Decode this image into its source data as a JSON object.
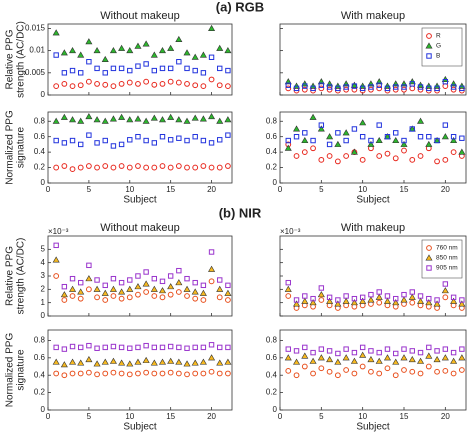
{
  "panel_titles": [
    "(a) RGB",
    "(b) NIR"
  ],
  "chart_data": [
    {
      "type": "scatter",
      "title": "Without makeup",
      "ylabel": [
        "Relative PPG",
        "strength (AC/DC)"
      ],
      "x": [
        1,
        2,
        3,
        4,
        5,
        6,
        7,
        8,
        9,
        10,
        11,
        12,
        13,
        14,
        15,
        16,
        17,
        18,
        19,
        20,
        21,
        22
      ],
      "xlim": [
        0,
        22.5
      ],
      "xticks": [
        0,
        5,
        10,
        15,
        20
      ],
      "xtick_labels": false,
      "ylim": [
        0,
        0.016
      ],
      "yticks": [
        0,
        0.005,
        0.01,
        0.015
      ],
      "series": [
        {
          "name": "R",
          "color": "#e8281e",
          "marker": "circle",
          "values": [
            0.002,
            0.0025,
            0.002,
            0.0022,
            0.003,
            0.0025,
            0.0023,
            0.002,
            0.0025,
            0.0028,
            0.0025,
            0.003,
            0.0023,
            0.0025,
            0.003,
            0.0028,
            0.0025,
            0.0022,
            0.002,
            0.0035,
            0.0022,
            0.002
          ]
        },
        {
          "name": "G",
          "color": "#2db52d",
          "marker": "triangle",
          "values": [
            0.014,
            0.0095,
            0.01,
            0.009,
            0.012,
            0.01,
            0.008,
            0.01,
            0.0105,
            0.01,
            0.011,
            0.0115,
            0.009,
            0.01,
            0.0105,
            0.0125,
            0.0095,
            0.0085,
            0.009,
            0.015,
            0.0105,
            0.01
          ]
        },
        {
          "name": "B",
          "color": "#2233dd",
          "marker": "square",
          "values": [
            0.009,
            0.005,
            0.0055,
            0.005,
            0.0075,
            0.006,
            0.005,
            0.006,
            0.006,
            0.0055,
            0.0065,
            0.007,
            0.0055,
            0.006,
            0.006,
            0.0075,
            0.006,
            0.0055,
            0.005,
            0.0085,
            0.006,
            0.0055
          ]
        }
      ]
    },
    {
      "type": "scatter",
      "title": "With makeup",
      "legend": "upper right",
      "x": [
        1,
        2,
        3,
        4,
        5,
        6,
        7,
        8,
        9,
        10,
        11,
        12,
        13,
        14,
        15,
        16,
        17,
        18,
        19,
        20,
        21,
        22
      ],
      "xlim": [
        0,
        22.5
      ],
      "xticks": [
        0,
        5,
        10,
        15,
        20
      ],
      "xtick_labels": false,
      "ylim": [
        0,
        0.016
      ],
      "yticks": [
        0,
        0.005,
        0.01,
        0.015
      ],
      "ytick_labels": false,
      "series": [
        {
          "name": "R",
          "color": "#e8281e",
          "marker": "circle",
          "values": [
            0.0015,
            0.001,
            0.0012,
            0.001,
            0.0015,
            0.0012,
            0.001,
            0.0012,
            0.0012,
            0.001,
            0.0012,
            0.0015,
            0.001,
            0.0012,
            0.0012,
            0.0015,
            0.0012,
            0.001,
            0.001,
            0.002,
            0.0012,
            0.001
          ]
        },
        {
          "name": "G",
          "color": "#2db52d",
          "marker": "triangle",
          "values": [
            0.003,
            0.002,
            0.0025,
            0.002,
            0.003,
            0.0025,
            0.002,
            0.0025,
            0.0022,
            0.002,
            0.0025,
            0.003,
            0.002,
            0.0025,
            0.0025,
            0.003,
            0.0022,
            0.002,
            0.002,
            0.0035,
            0.0025,
            0.002
          ]
        },
        {
          "name": "B",
          "color": "#2233dd",
          "marker": "square",
          "values": [
            0.0022,
            0.0015,
            0.002,
            0.0015,
            0.0022,
            0.0018,
            0.0015,
            0.0018,
            0.002,
            0.0015,
            0.0018,
            0.0022,
            0.0015,
            0.0018,
            0.0018,
            0.0025,
            0.0018,
            0.0015,
            0.0015,
            0.003,
            0.0018,
            0.0015
          ]
        }
      ]
    },
    {
      "type": "scatter",
      "ylabel": [
        "Normalized PPG",
        "signature"
      ],
      "xlabel": "Subject",
      "x": [
        1,
        2,
        3,
        4,
        5,
        6,
        7,
        8,
        9,
        10,
        11,
        12,
        13,
        14,
        15,
        16,
        17,
        18,
        19,
        20,
        21,
        22
      ],
      "xlim": [
        0,
        22.5
      ],
      "xticks": [
        0,
        5,
        10,
        15,
        20
      ],
      "ylim": [
        0,
        0.92
      ],
      "yticks": [
        0,
        0.2,
        0.4,
        0.6,
        0.8
      ],
      "series": [
        {
          "name": "R",
          "color": "#e8281e",
          "marker": "circle",
          "values": [
            0.2,
            0.22,
            0.18,
            0.2,
            0.22,
            0.2,
            0.22,
            0.2,
            0.22,
            0.2,
            0.22,
            0.2,
            0.2,
            0.22,
            0.2,
            0.22,
            0.2,
            0.2,
            0.22,
            0.2,
            0.2,
            0.22
          ]
        },
        {
          "name": "G",
          "color": "#2db52d",
          "marker": "triangle",
          "values": [
            0.8,
            0.85,
            0.82,
            0.8,
            0.86,
            0.82,
            0.8,
            0.83,
            0.85,
            0.82,
            0.83,
            0.8,
            0.84,
            0.82,
            0.85,
            0.82,
            0.8,
            0.84,
            0.83,
            0.86,
            0.8,
            0.82
          ]
        },
        {
          "name": "B",
          "color": "#2233dd",
          "marker": "square",
          "values": [
            0.55,
            0.52,
            0.55,
            0.5,
            0.62,
            0.52,
            0.55,
            0.48,
            0.5,
            0.56,
            0.6,
            0.55,
            0.52,
            0.6,
            0.56,
            0.58,
            0.55,
            0.6,
            0.55,
            0.52,
            0.56,
            0.62
          ]
        }
      ]
    },
    {
      "type": "scatter",
      "xlabel": "Subject",
      "x": [
        1,
        2,
        3,
        4,
        5,
        6,
        7,
        8,
        9,
        10,
        11,
        12,
        13,
        14,
        15,
        16,
        17,
        18,
        19,
        20,
        21,
        22
      ],
      "xlim": [
        0,
        22.5
      ],
      "xticks": [
        0,
        5,
        10,
        15,
        20
      ],
      "ylim": [
        0,
        0.92
      ],
      "yticks": [
        0,
        0.2,
        0.4,
        0.6,
        0.8
      ],
      "series": [
        {
          "name": "R",
          "color": "#e8281e",
          "marker": "circle",
          "values": [
            0.5,
            0.35,
            0.4,
            0.45,
            0.3,
            0.35,
            0.28,
            0.35,
            0.4,
            0.3,
            0.45,
            0.35,
            0.38,
            0.32,
            0.42,
            0.3,
            0.35,
            0.45,
            0.28,
            0.3,
            0.4,
            0.35
          ]
        },
        {
          "name": "G",
          "color": "#2db52d",
          "marker": "triangle",
          "values": [
            0.45,
            0.7,
            0.55,
            0.85,
            0.7,
            0.6,
            0.5,
            0.65,
            0.4,
            0.78,
            0.5,
            0.55,
            0.6,
            0.55,
            0.5,
            0.7,
            0.8,
            0.5,
            0.55,
            0.6,
            0.55,
            0.4
          ]
        },
        {
          "name": "B",
          "color": "#2233dd",
          "marker": "square",
          "values": [
            0.55,
            0.6,
            0.65,
            0.55,
            0.75,
            0.5,
            0.65,
            0.55,
            0.7,
            0.6,
            0.55,
            0.75,
            0.6,
            0.65,
            0.55,
            0.7,
            0.6,
            0.6,
            0.55,
            0.75,
            0.6,
            0.58
          ]
        }
      ]
    },
    {
      "type": "scatter",
      "title": "Without makeup",
      "ylabel": [
        "Relative PPG",
        "strength (AC/DC)"
      ],
      "offset_label": "×10⁻³",
      "x": [
        1,
        2,
        3,
        4,
        5,
        6,
        7,
        8,
        9,
        10,
        11,
        12,
        13,
        14,
        15,
        16,
        17,
        18,
        19,
        20,
        21,
        22
      ],
      "xlim": [
        0,
        22.5
      ],
      "xticks": [
        0,
        5,
        10,
        15,
        20
      ],
      "xtick_labels": false,
      "ylim": [
        0,
        6
      ],
      "yticks": [
        0,
        1,
        2,
        3,
        4,
        5
      ],
      "series": [
        {
          "name": "760 nm",
          "color": "#e8501e",
          "marker": "circle",
          "values": [
            3.0,
            1.2,
            1.5,
            1.3,
            2.0,
            1.4,
            1.2,
            1.5,
            1.3,
            1.4,
            1.6,
            1.8,
            1.5,
            1.4,
            1.6,
            1.8,
            1.5,
            1.3,
            1.2,
            2.6,
            1.4,
            1.2
          ]
        },
        {
          "name": "850 nm",
          "color": "#f5b820",
          "marker": "triangle",
          "values": [
            4.2,
            1.6,
            2.0,
            1.8,
            2.8,
            2.0,
            1.7,
            2.0,
            1.8,
            2.0,
            2.2,
            2.4,
            2.0,
            1.9,
            2.2,
            2.5,
            2.0,
            1.8,
            1.7,
            3.5,
            2.0,
            1.7
          ]
        },
        {
          "name": "905 nm",
          "color": "#9933cc",
          "marker": "square",
          "values": [
            5.3,
            2.2,
            2.8,
            2.5,
            3.8,
            2.7,
            2.3,
            2.8,
            2.5,
            2.7,
            3.0,
            3.3,
            2.8,
            2.6,
            3.0,
            3.4,
            2.8,
            2.5,
            2.3,
            4.8,
            2.7,
            2.3
          ]
        }
      ]
    },
    {
      "type": "scatter",
      "title": "With makeup",
      "legend": "upper right",
      "offset_label": "×10⁻³",
      "x": [
        1,
        2,
        3,
        4,
        5,
        6,
        7,
        8,
        9,
        10,
        11,
        12,
        13,
        14,
        15,
        16,
        17,
        18,
        19,
        20,
        21,
        22
      ],
      "xlim": [
        0,
        22.5
      ],
      "xticks": [
        0,
        5,
        10,
        15,
        20
      ],
      "xtick_labels": false,
      "ylim": [
        0,
        6
      ],
      "yticks": [
        0,
        1,
        2,
        3,
        4,
        5
      ],
      "ytick_labels": false,
      "series": [
        {
          "name": "760 nm",
          "color": "#e8501e",
          "marker": "circle",
          "values": [
            1.5,
            0.6,
            0.8,
            0.7,
            1.2,
            0.8,
            0.6,
            0.8,
            0.7,
            0.8,
            0.9,
            1.0,
            0.8,
            0.7,
            0.9,
            1.0,
            0.8,
            0.7,
            0.6,
            1.4,
            0.8,
            0.6
          ]
        },
        {
          "name": "850 nm",
          "color": "#f5b820",
          "marker": "triangle",
          "values": [
            2.0,
            0.9,
            1.1,
            1.0,
            1.6,
            1.1,
            0.9,
            1.1,
            1.0,
            1.1,
            1.2,
            1.4,
            1.1,
            1.0,
            1.2,
            1.4,
            1.1,
            1.0,
            0.9,
            1.9,
            1.1,
            0.9
          ]
        },
        {
          "name": "905 nm",
          "color": "#9933cc",
          "marker": "square",
          "values": [
            2.5,
            1.2,
            1.5,
            1.3,
            2.1,
            1.4,
            1.2,
            1.5,
            1.3,
            1.4,
            1.6,
            1.8,
            1.5,
            1.3,
            1.6,
            1.8,
            1.5,
            1.3,
            1.2,
            2.4,
            1.4,
            1.2
          ]
        }
      ]
    },
    {
      "type": "scatter",
      "ylabel": [
        "Normalized PPG",
        "signature"
      ],
      "xlabel": "Subject",
      "x": [
        1,
        2,
        3,
        4,
        5,
        6,
        7,
        8,
        9,
        10,
        11,
        12,
        13,
        14,
        15,
        16,
        17,
        18,
        19,
        20,
        21,
        22
      ],
      "xlim": [
        0,
        22.5
      ],
      "xticks": [
        0,
        5,
        10,
        15,
        20
      ],
      "ylim": [
        0,
        0.92
      ],
      "yticks": [
        0,
        0.2,
        0.4,
        0.6,
        0.8
      ],
      "series": [
        {
          "name": "760 nm",
          "color": "#e8501e",
          "marker": "circle",
          "values": [
            0.42,
            0.4,
            0.42,
            0.42,
            0.43,
            0.41,
            0.42,
            0.43,
            0.42,
            0.41,
            0.42,
            0.43,
            0.42,
            0.42,
            0.43,
            0.42,
            0.41,
            0.42,
            0.42,
            0.44,
            0.42,
            0.42
          ]
        },
        {
          "name": "850 nm",
          "color": "#f5b820",
          "marker": "triangle",
          "values": [
            0.55,
            0.52,
            0.55,
            0.54,
            0.58,
            0.53,
            0.55,
            0.56,
            0.54,
            0.53,
            0.55,
            0.57,
            0.54,
            0.55,
            0.56,
            0.55,
            0.53,
            0.54,
            0.55,
            0.6,
            0.54,
            0.55
          ]
        },
        {
          "name": "905 nm",
          "color": "#9933cc",
          "marker": "square",
          "values": [
            0.72,
            0.7,
            0.73,
            0.72,
            0.74,
            0.71,
            0.72,
            0.73,
            0.72,
            0.71,
            0.72,
            0.74,
            0.72,
            0.72,
            0.73,
            0.72,
            0.71,
            0.72,
            0.72,
            0.75,
            0.72,
            0.72
          ]
        }
      ]
    },
    {
      "type": "scatter",
      "xlabel": "Subject",
      "x": [
        1,
        2,
        3,
        4,
        5,
        6,
        7,
        8,
        9,
        10,
        11,
        12,
        13,
        14,
        15,
        16,
        17,
        18,
        19,
        20,
        21,
        22
      ],
      "xlim": [
        0,
        22.5
      ],
      "xticks": [
        0,
        5,
        10,
        15,
        20
      ],
      "ylim": [
        0,
        0.92
      ],
      "yticks": [
        0,
        0.2,
        0.4,
        0.6,
        0.8
      ],
      "series": [
        {
          "name": "760 nm",
          "color": "#e8501e",
          "marker": "circle",
          "values": [
            0.45,
            0.4,
            0.5,
            0.42,
            0.48,
            0.44,
            0.4,
            0.46,
            0.42,
            0.5,
            0.44,
            0.42,
            0.48,
            0.4,
            0.46,
            0.44,
            0.42,
            0.5,
            0.44,
            0.45,
            0.42,
            0.46
          ]
        },
        {
          "name": "850 nm",
          "color": "#f5b820",
          "marker": "triangle",
          "values": [
            0.6,
            0.55,
            0.62,
            0.56,
            0.6,
            0.58,
            0.55,
            0.6,
            0.56,
            0.63,
            0.58,
            0.56,
            0.6,
            0.55,
            0.6,
            0.58,
            0.56,
            0.62,
            0.58,
            0.6,
            0.56,
            0.6
          ]
        },
        {
          "name": "905 nm",
          "color": "#9933cc",
          "marker": "square",
          "values": [
            0.7,
            0.68,
            0.72,
            0.66,
            0.7,
            0.68,
            0.65,
            0.7,
            0.66,
            0.72,
            0.68,
            0.66,
            0.7,
            0.65,
            0.7,
            0.68,
            0.66,
            0.72,
            0.68,
            0.7,
            0.66,
            0.7
          ]
        }
      ]
    }
  ]
}
